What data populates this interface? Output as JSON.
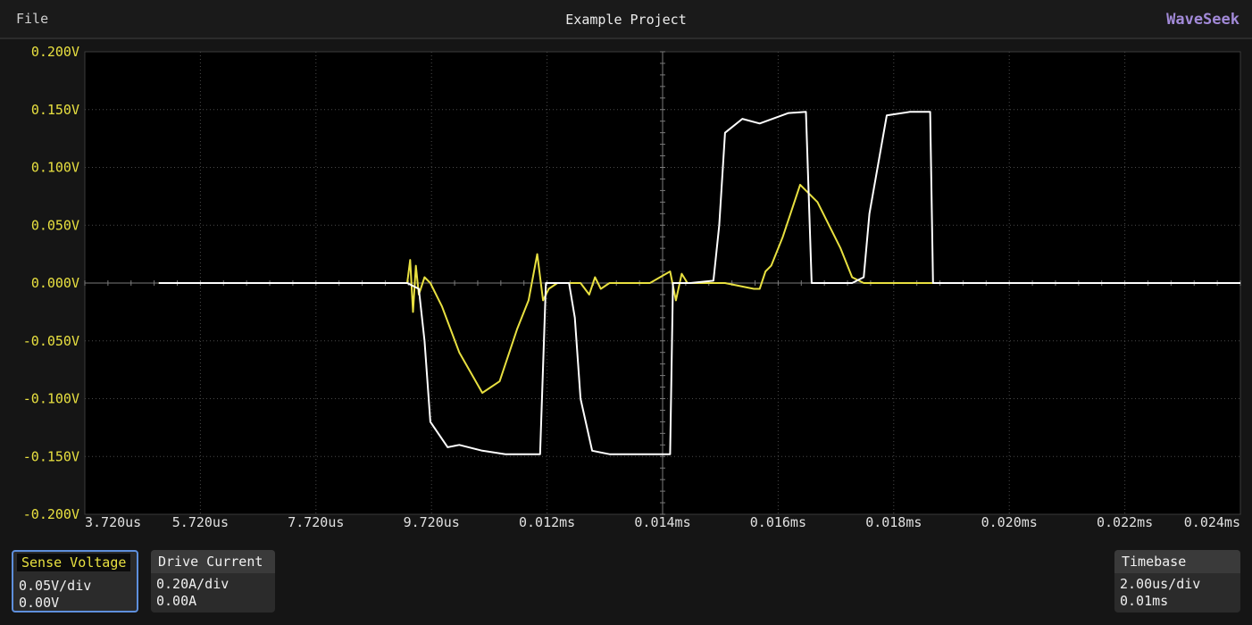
{
  "menu": {
    "file": "File"
  },
  "header": {
    "title": "Example Project"
  },
  "brand": {
    "name": "WaveSeek",
    "color": "#a28ad8"
  },
  "colors": {
    "sense_trace": "#e8e040",
    "drive_trace": "#ffffff",
    "grid": "#4a4a4a",
    "selected_border": "#5e8fdc"
  },
  "chart_data": {
    "type": "line",
    "grid": true,
    "x_unit": "us",
    "xlim": [
      3.72,
      23.72
    ],
    "ylim": [
      -0.2,
      0.2
    ],
    "y_ticks": [
      "0.200V",
      "0.150V",
      "0.100V",
      "0.050V",
      "0.000V",
      "-0.050V",
      "-0.100V",
      "-0.150V",
      "-0.200V"
    ],
    "x_ticks": [
      "3.720us",
      "5.720us",
      "7.720us",
      "9.720us",
      "0.012ms",
      "0.014ms",
      "0.016ms",
      "0.018ms",
      "0.020ms",
      "0.022ms",
      "0.024ms"
    ],
    "series": [
      {
        "name": "Sense Voltage",
        "color": "#e8e040",
        "x": [
          5.0,
          9.0,
          9.3,
          9.35,
          9.4,
          9.45,
          9.5,
          9.6,
          9.7,
          9.9,
          10.2,
          10.6,
          10.9,
          11.2,
          11.4,
          11.55,
          11.65,
          11.75,
          11.9,
          12.1,
          12.3,
          12.45,
          12.55,
          12.65,
          12.8,
          13.0,
          13.5,
          13.85,
          13.95,
          14.05,
          14.15,
          14.5,
          14.8,
          15.3,
          15.4,
          15.5,
          15.6,
          15.8,
          16.1,
          16.4,
          16.8,
          17.0,
          17.2,
          18.0,
          18.3,
          19.0,
          20.0,
          21.0,
          22.0,
          23.72
        ],
        "y": [
          0.0,
          0.0,
          0.0,
          0.02,
          -0.025,
          0.015,
          -0.01,
          0.005,
          0.0,
          -0.02,
          -0.06,
          -0.095,
          -0.085,
          -0.04,
          -0.015,
          0.025,
          -0.015,
          -0.005,
          0.0,
          0.0,
          0.0,
          -0.01,
          0.005,
          -0.005,
          0.0,
          0.0,
          0.0,
          0.01,
          -0.015,
          0.008,
          0.0,
          0.0,
          0.0,
          -0.005,
          -0.005,
          0.01,
          0.015,
          0.04,
          0.085,
          0.07,
          0.03,
          0.005,
          0.0,
          0.0,
          0.0,
          0.0,
          0.0,
          0.0,
          0.0,
          0.0
        ]
      },
      {
        "name": "Drive Current",
        "color": "#ffffff",
        "x": [
          5.0,
          9.0,
          9.3,
          9.5,
          9.6,
          9.7,
          10.0,
          10.2,
          10.6,
          11.0,
          11.4,
          11.6,
          11.7,
          12.1,
          12.2,
          12.3,
          12.5,
          12.8,
          13.5,
          13.85,
          13.9,
          14.2,
          14.6,
          14.7,
          14.8,
          15.1,
          15.4,
          15.9,
          16.2,
          16.3,
          17.0,
          17.2,
          17.3,
          17.6,
          18.0,
          18.35,
          18.4,
          18.5,
          19.0,
          23.72
        ],
        "y": [
          0.0,
          0.0,
          0.0,
          -0.005,
          -0.05,
          -0.12,
          -0.142,
          -0.14,
          -0.145,
          -0.148,
          -0.148,
          -0.148,
          0.0,
          0.0,
          -0.03,
          -0.1,
          -0.145,
          -0.148,
          -0.148,
          -0.148,
          0.0,
          0.0,
          0.002,
          0.05,
          0.13,
          0.142,
          0.138,
          0.147,
          0.148,
          0.0,
          0.0,
          0.005,
          0.06,
          0.145,
          0.148,
          0.148,
          0.0,
          0.0,
          0.0,
          0.0
        ]
      }
    ]
  },
  "channels": {
    "sense": {
      "label": "Sense Voltage",
      "scale": "0.05V/div",
      "offset": "0.00V"
    },
    "drive": {
      "label": "Drive Current",
      "scale": "0.20A/div",
      "offset": "0.00A"
    }
  },
  "timebase": {
    "label": "Timebase",
    "scale": "2.00us/div",
    "position": "0.01ms"
  }
}
